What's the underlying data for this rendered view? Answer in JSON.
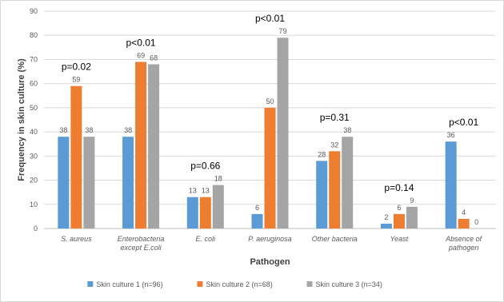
{
  "chart_data": {
    "type": "bar",
    "title": "",
    "xlabel": "Pathogen",
    "ylabel": "Frequency in skin culture (%)",
    "ylim": [
      0,
      90
    ],
    "yticks": [
      0,
      10,
      20,
      30,
      40,
      50,
      60,
      70,
      80,
      90
    ],
    "grid": true,
    "legend_position": "bottom",
    "categories": [
      [
        "S. aureus"
      ],
      [
        "Enterobacteria",
        "except E.coli"
      ],
      [
        "E. coli"
      ],
      [
        "P. aeruginosa"
      ],
      [
        "Other bacteria"
      ],
      [
        "Yeast"
      ],
      [
        "Absence of",
        "pathogen"
      ]
    ],
    "series": [
      {
        "name": "Skin culture 1 (n=96)",
        "color": "#5B9BD5",
        "values": [
          38,
          38,
          13,
          6,
          28,
          2,
          36
        ]
      },
      {
        "name": "Skin culture 2 (n=68)",
        "color": "#ED7D31",
        "values": [
          59,
          69,
          13,
          50,
          32,
          6,
          4
        ]
      },
      {
        "name": "Skin culture 3 (n=34)",
        "color": "#A5A5A5",
        "values": [
          38,
          68,
          18,
          79,
          38,
          9,
          0
        ]
      }
    ],
    "annotations": [
      "p=0.02",
      "p<0.01",
      "p=0.66",
      "p<0.01",
      "p=0.31",
      "p=0.14",
      "p<0.01"
    ]
  }
}
